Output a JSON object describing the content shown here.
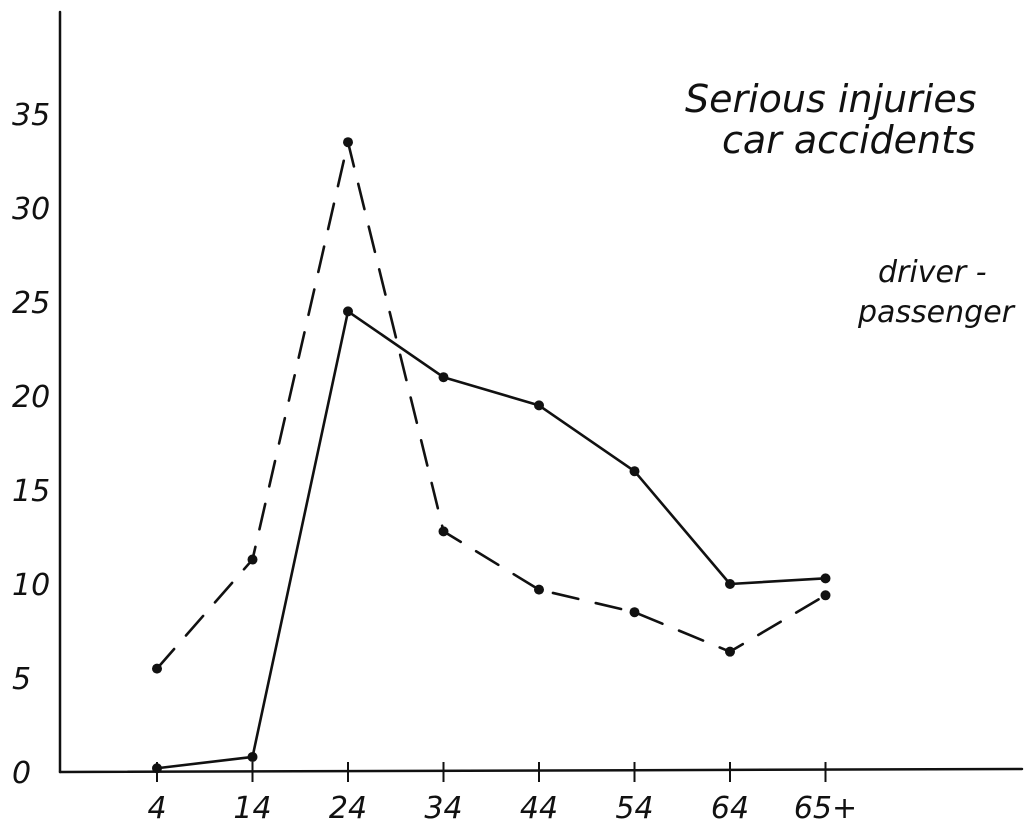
{
  "chart_data": {
    "type": "line",
    "title_lines": [
      "Serious injuries",
      "car accidents"
    ],
    "legend_lines": [
      "driver -",
      "passenger"
    ],
    "x": [
      "4",
      "14",
      "24",
      "34",
      "44",
      "54",
      "64",
      "65+"
    ],
    "y_ticks": [
      "0",
      "5",
      "10",
      "15",
      "20",
      "25",
      "30",
      "35"
    ],
    "ylim": [
      0,
      38
    ],
    "grid": false,
    "series": [
      {
        "key": "solid",
        "style": "solid",
        "values": [
          0.2,
          0.8,
          24.5,
          21,
          19.5,
          16,
          10,
          10.3
        ]
      },
      {
        "key": "dashed",
        "style": "dashed",
        "values": [
          5.5,
          11.3,
          33.5,
          12.8,
          9.7,
          8.5,
          6.4,
          9.4
        ]
      }
    ],
    "colors": {
      "ink": "#111111"
    }
  }
}
